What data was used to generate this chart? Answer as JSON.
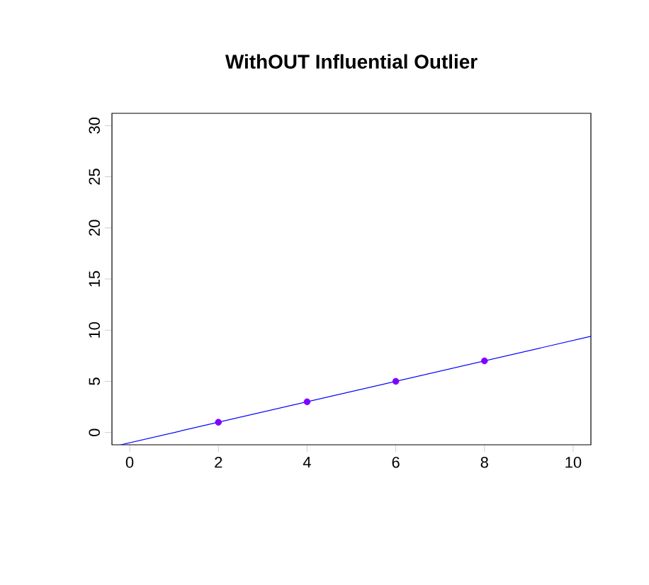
{
  "chart_data": {
    "type": "scatter",
    "title": "WithOUT Influential Outlier",
    "xlim": [
      -0.4,
      10.4
    ],
    "ylim": [
      -1.2,
      31.2
    ],
    "xticks": [
      0,
      2,
      4,
      6,
      8,
      10
    ],
    "yticks": [
      0,
      5,
      10,
      15,
      20,
      25,
      30
    ],
    "grid": false,
    "series": [
      {
        "color": "#8000ff",
        "marker": "circle",
        "x": [
          2,
          4,
          6,
          8
        ],
        "values": [
          1,
          3,
          5,
          7
        ]
      },
      {
        "type": "line",
        "color": "#0000ff",
        "marker": "none",
        "line_style": "solid",
        "x": [
          -0.2,
          10.4
        ],
        "values": [
          -1.2,
          9.4
        ]
      }
    ]
  }
}
